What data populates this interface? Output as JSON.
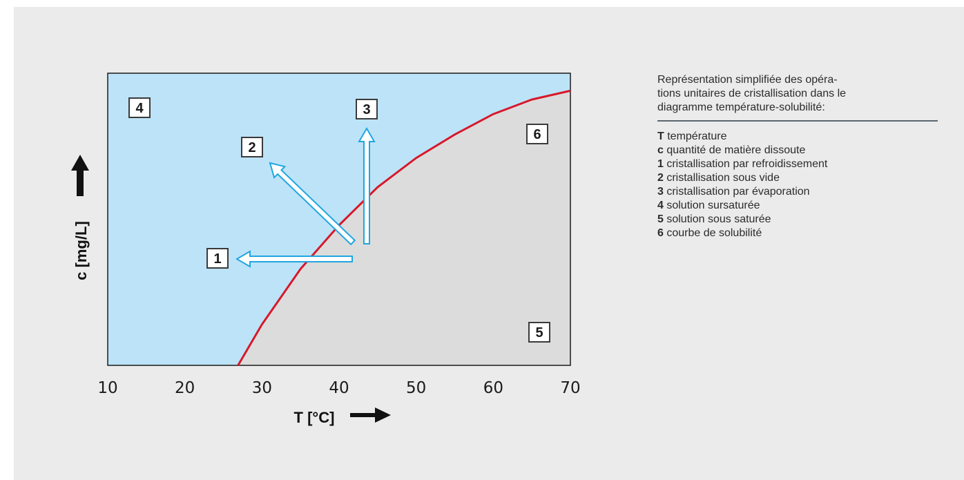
{
  "colors": {
    "panel_background": "#ebebeb",
    "supersaturated_region": "#bde3f8",
    "undersaturated_region": "#dcdcdc",
    "solubility_curve": "#d7182a",
    "arrow_outline": "#1ea6e0",
    "arrow_fill": "#ffffff",
    "axis_arrow": "#111111",
    "text": "#2b2b2b"
  },
  "chart_data": {
    "type": "line",
    "description_series": "solubility curve",
    "x_axis": {
      "label": "T [°C]",
      "range": [
        10,
        70
      ],
      "ticks": [
        10,
        20,
        30,
        40,
        50,
        60,
        70
      ]
    },
    "y_axis": {
      "label": "c [mg/L]",
      "ticks_shown": false
    },
    "grid": false,
    "series": [
      {
        "label_number": "6",
        "x": [
          26.9,
          30,
          35,
          40,
          45,
          50,
          55,
          60,
          65,
          70
        ],
        "y_relative": [
          0.0,
          0.14,
          0.33,
          0.48,
          0.61,
          0.71,
          0.79,
          0.86,
          0.91,
          0.94
        ]
      }
    ],
    "regions": [
      {
        "number": "4",
        "side": "above curve"
      },
      {
        "number": "5",
        "side": "below curve"
      }
    ],
    "arrows": [
      {
        "number": "1",
        "direction": "left",
        "start_x": 41.5
      },
      {
        "number": "2",
        "direction": "up-left",
        "start_x": 41.5
      },
      {
        "number": "3",
        "direction": "up",
        "start_x": 43.5
      }
    ],
    "labels": [
      "1",
      "2",
      "3",
      "4",
      "5",
      "6"
    ]
  },
  "legend": {
    "intro_lines": [
      "Représentation simplifiée des opéra-",
      "tions unitaires de cristallisation dans le",
      "diagramme température-solubilité:"
    ],
    "items": [
      {
        "key": "T",
        "text": "température"
      },
      {
        "key": "c",
        "text": "quantité de matière dissoute"
      },
      {
        "key": "1",
        "text": "cristallisation par refroidissement"
      },
      {
        "key": "2",
        "text": "cristallisation sous vide"
      },
      {
        "key": "3",
        "text": "cristallisation par évaporation"
      },
      {
        "key": "4",
        "text": "solution sursaturée"
      },
      {
        "key": "5",
        "text": "solution sous saturée"
      },
      {
        "key": "6",
        "text": "courbe de solubilité"
      }
    ]
  }
}
